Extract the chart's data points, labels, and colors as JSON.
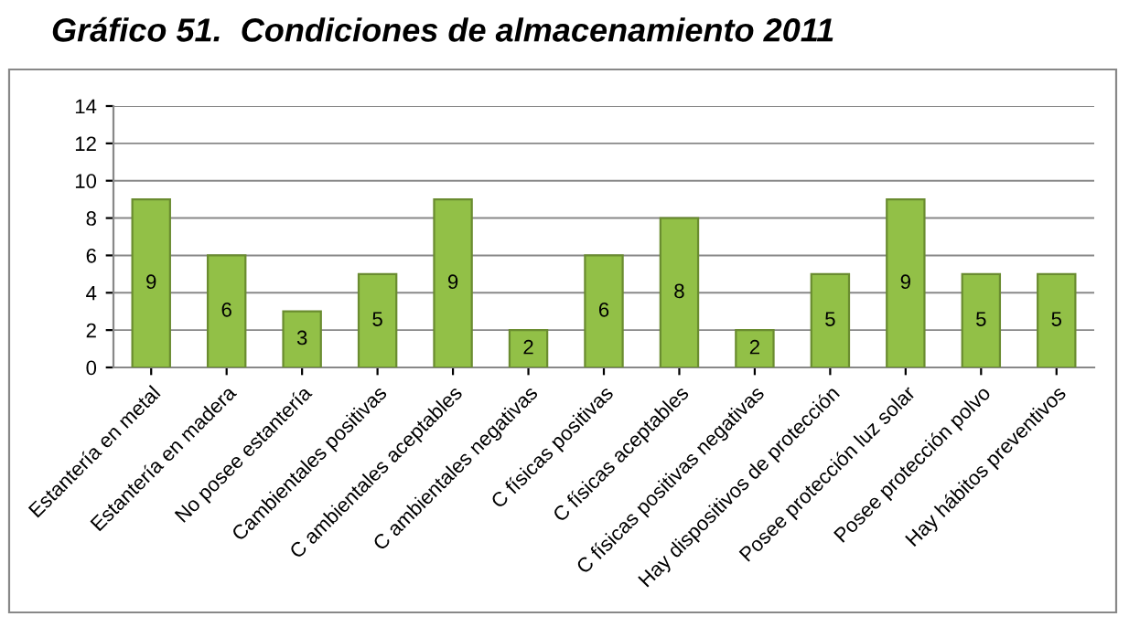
{
  "chart_data": {
    "type": "bar",
    "title": "Gráfico 51.  Condiciones de almacenamiento 2011",
    "categories": [
      "Estantería en metal",
      "Estantería en madera",
      "No posee estantería",
      "Cambientales positivas",
      "C ambientales aceptables",
      "C ambientales negativas",
      "C físicas positivas",
      "C físicas aceptables",
      "C físicas positivas negativas",
      "Hay dispositivos de protección",
      "Posee protección luz solar",
      "Posee protección polvo",
      "Hay hábitos preventivos"
    ],
    "values": [
      9,
      6,
      3,
      5,
      9,
      2,
      6,
      8,
      2,
      5,
      9,
      5,
      5
    ],
    "color": "#92c047",
    "ylim": [
      0,
      14
    ],
    "yticks": [
      0,
      2,
      4,
      6,
      8,
      10,
      12,
      14
    ],
    "grid": "y",
    "data_labels": true
  }
}
